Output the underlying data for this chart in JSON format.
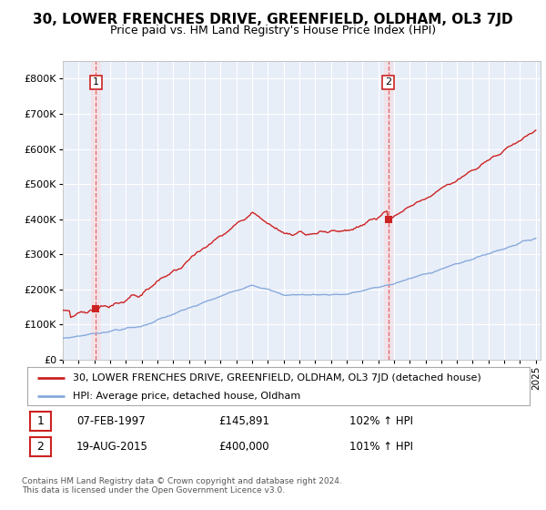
{
  "title": "30, LOWER FRENCHES DRIVE, GREENFIELD, OLDHAM, OL3 7JD",
  "subtitle": "Price paid vs. HM Land Registry's House Price Index (HPI)",
  "ylim": [
    0,
    850000
  ],
  "yticks": [
    0,
    100000,
    200000,
    300000,
    400000,
    500000,
    600000,
    700000,
    800000
  ],
  "ytick_labels": [
    "£0",
    "£100K",
    "£200K",
    "£300K",
    "£400K",
    "£500K",
    "£600K",
    "£700K",
    "£800K"
  ],
  "x_start_year": 1995,
  "x_end_year": 2025,
  "sale1_year": 1997.1,
  "sale1_price": 145891,
  "sale2_year": 2015.65,
  "sale2_price": 400000,
  "sale1_label": "1",
  "sale2_label": "2",
  "property_line_color": "#cc2222",
  "hpi_line_color": "#88aadd",
  "vline_color": "#dd4444",
  "background_color": "#ffffff",
  "plot_bg_color": "#e8eef8",
  "grid_color": "#ffffff",
  "legend_property": "30, LOWER FRENCHES DRIVE, GREENFIELD, OLDHAM, OL3 7JD (detached house)",
  "legend_hpi": "HPI: Average price, detached house, Oldham",
  "annotation1_date": "07-FEB-1997",
  "annotation1_price": "£145,891",
  "annotation1_hpi": "102% ↑ HPI",
  "annotation2_date": "19-AUG-2015",
  "annotation2_price": "£400,000",
  "annotation2_hpi": "101% ↑ HPI",
  "footer": "Contains HM Land Registry data © Crown copyright and database right 2024.\nThis data is licensed under the Open Government Licence v3.0.",
  "title_fontsize": 11,
  "subtitle_fontsize": 9
}
